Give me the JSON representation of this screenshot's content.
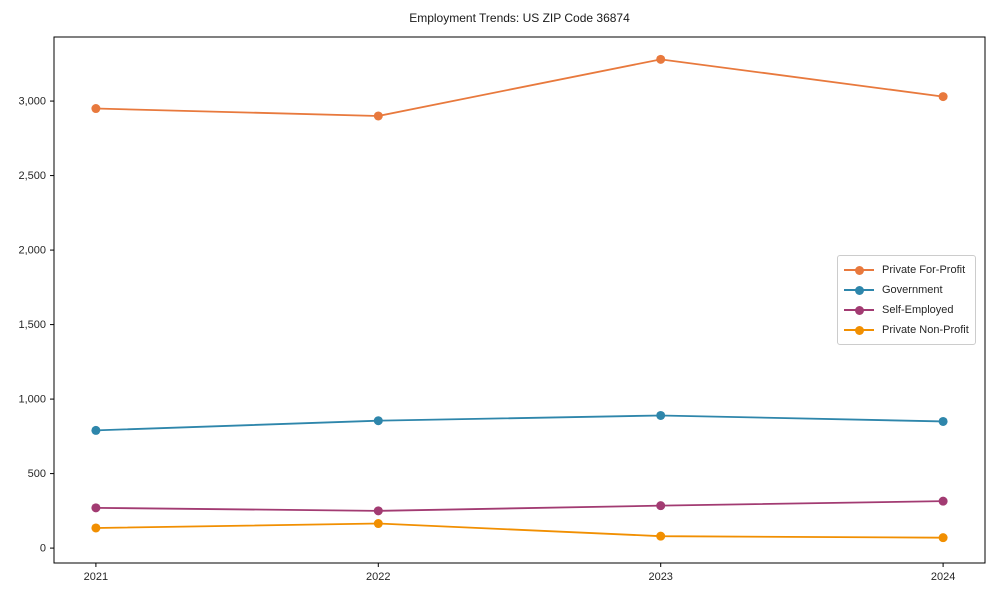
{
  "chart_data": {
    "type": "line",
    "title": "Employment Trends: US ZIP Code 36874",
    "x": [
      "2021",
      "2022",
      "2023",
      "2024"
    ],
    "series": [
      {
        "name": "Private For-Profit",
        "color": "#E8793D",
        "values": [
          2950,
          2900,
          3280,
          3030
        ]
      },
      {
        "name": "Government",
        "color": "#2E86AB",
        "values": [
          790,
          855,
          890,
          850
        ]
      },
      {
        "name": "Self-Employed",
        "color": "#A23B72",
        "values": [
          270,
          250,
          285,
          315
        ]
      },
      {
        "name": "Private Non-Profit",
        "color": "#F18F01",
        "values": [
          135,
          165,
          80,
          70
        ]
      }
    ],
    "xlabel": "",
    "ylabel": "",
    "ylim": [
      -100,
      3430
    ],
    "yticks": [
      0,
      500,
      1000,
      1500,
      2000,
      2500,
      3000
    ],
    "ytick_labels": [
      "0",
      "500",
      "1,000",
      "1,500",
      "2,000",
      "2,500",
      "3,000"
    ],
    "grid": false,
    "legend_position": "center right",
    "axis_color": "#000000",
    "tick_text_color": "#262626",
    "legend_border_color": "#cccccc"
  }
}
